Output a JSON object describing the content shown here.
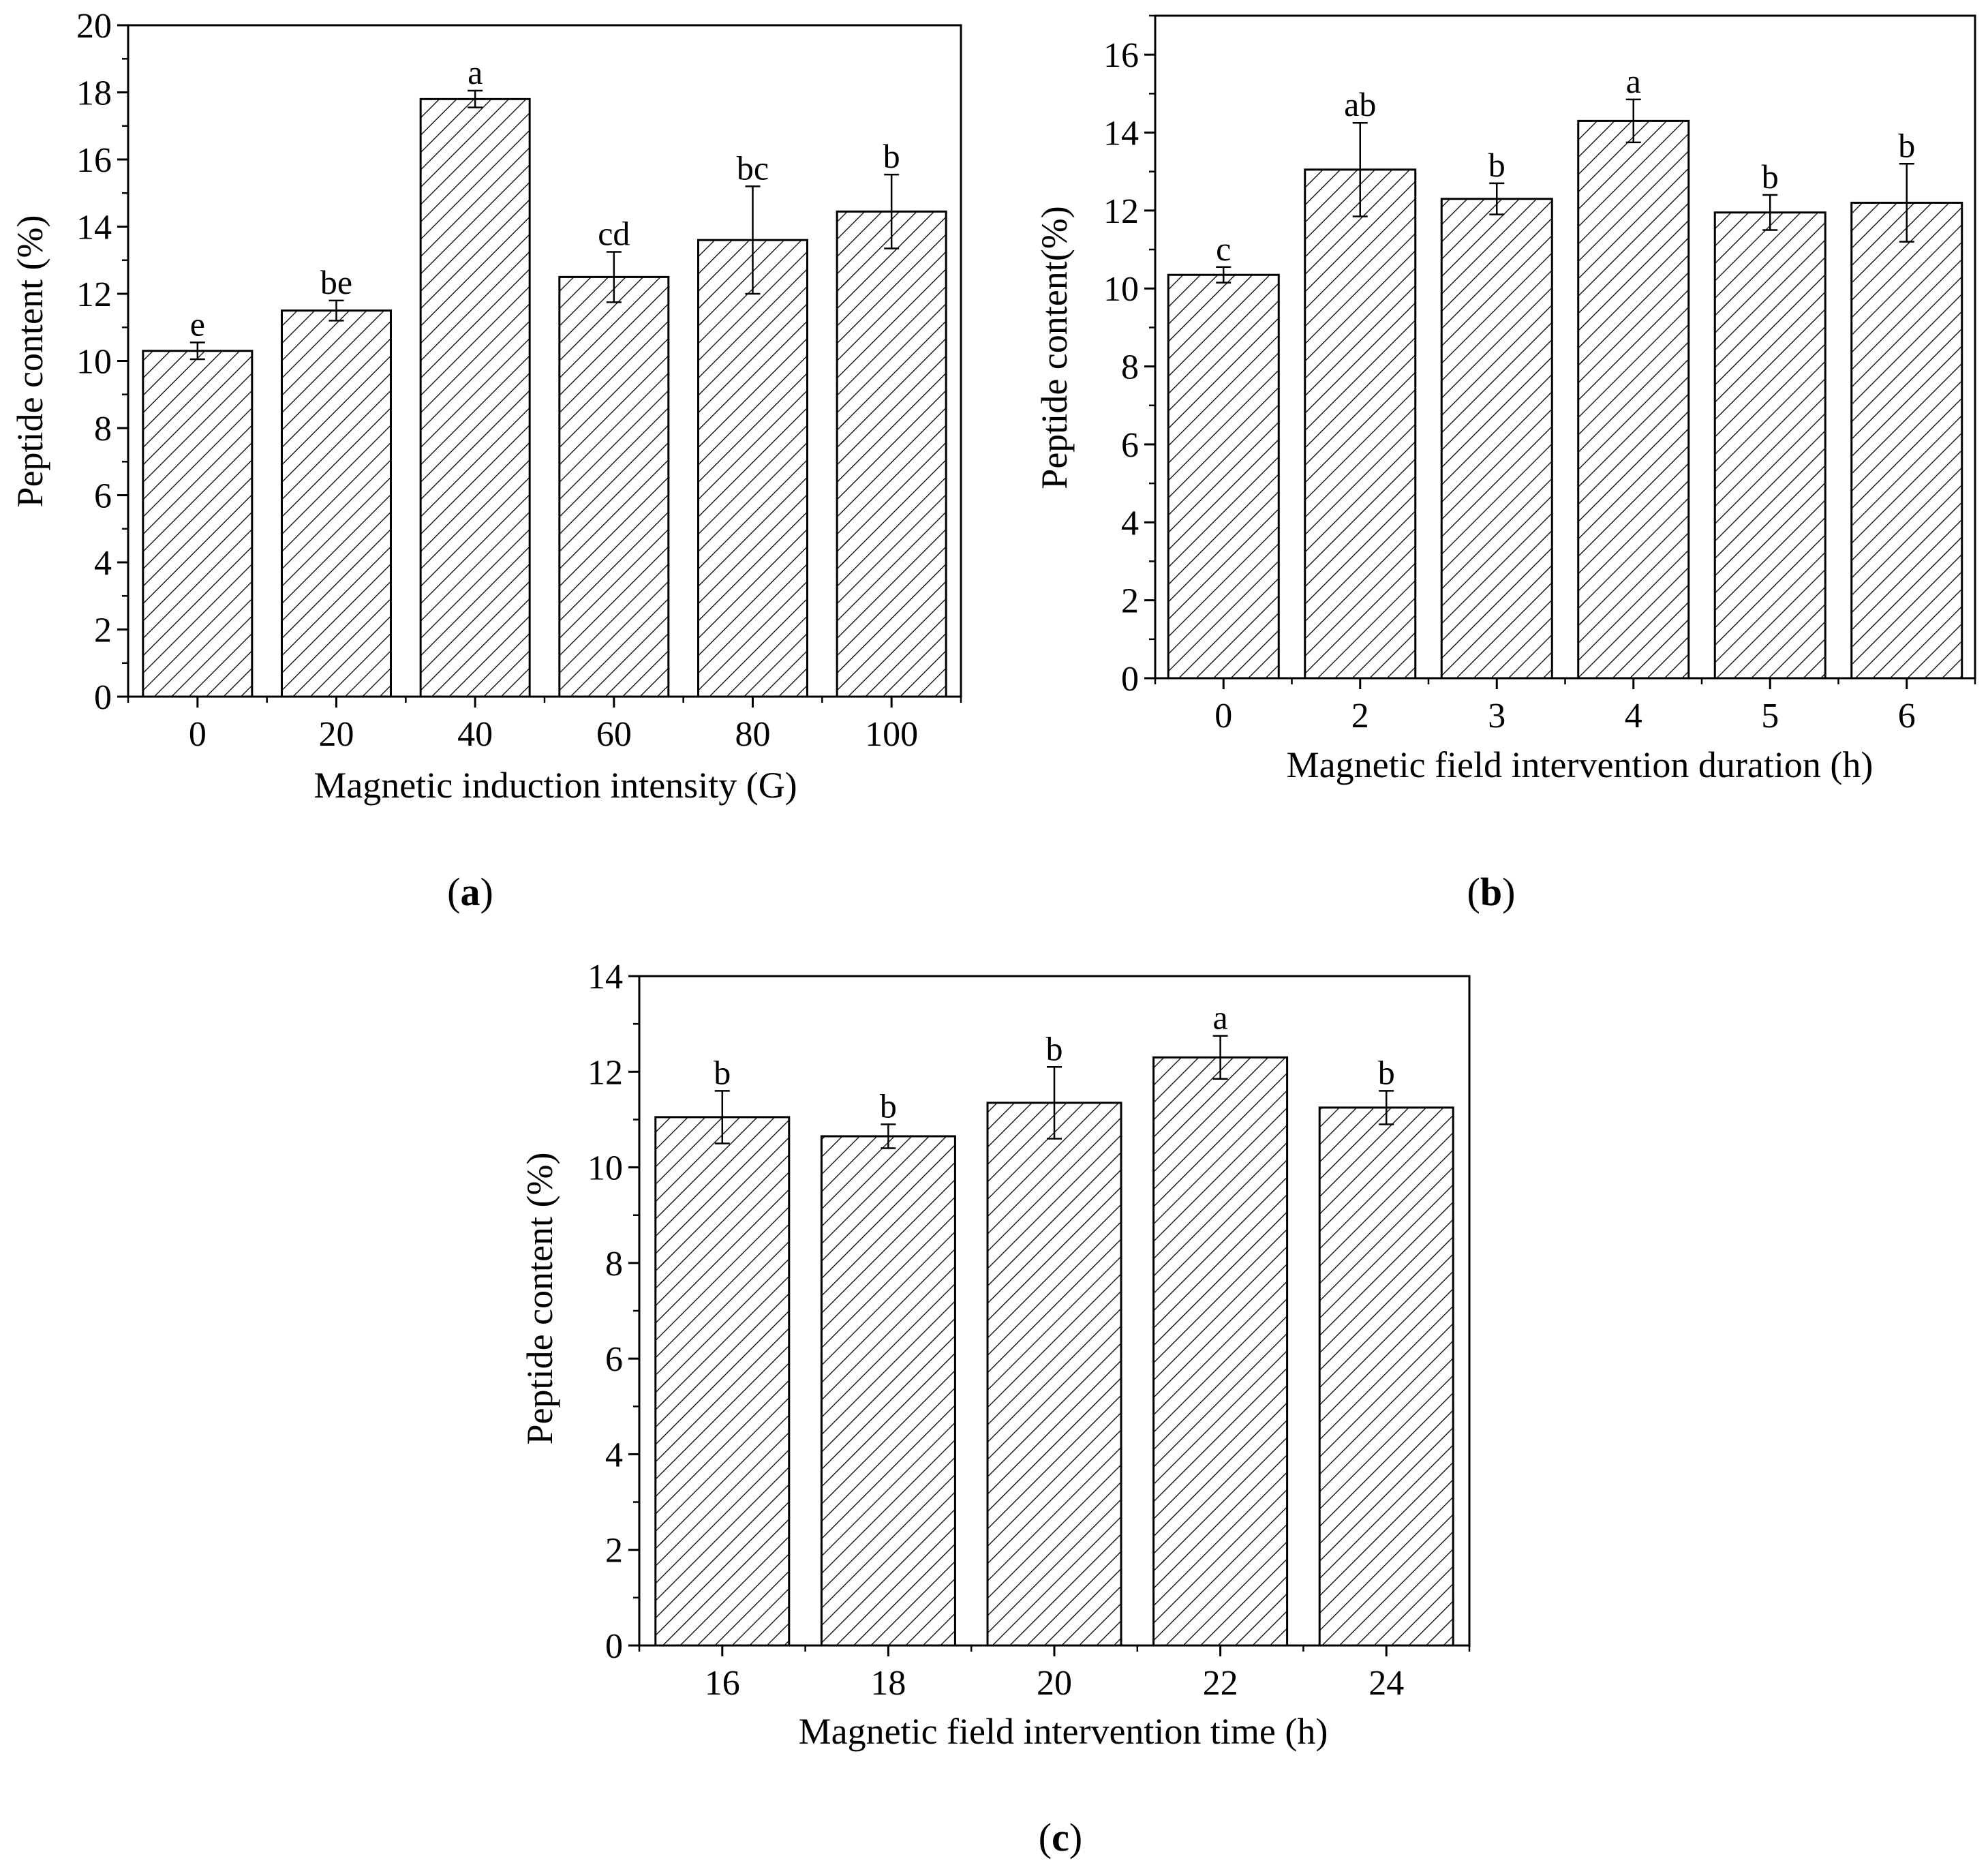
{
  "figure": {
    "colors": {
      "ink": "#000000",
      "background": "#ffffff"
    }
  },
  "chart_data": [
    {
      "panel": "a",
      "caption_open": "(",
      "caption_letter": "a",
      "caption_close": ")",
      "type": "bar",
      "xlabel": "Magnetic induction intensity (G)",
      "ylabel": "Peptide content (%)",
      "ylim": [
        0,
        20
      ],
      "yticks": [
        0,
        2,
        4,
        6,
        8,
        10,
        12,
        14,
        16,
        18,
        20
      ],
      "categories": [
        "0",
        "20",
        "40",
        "60",
        "80",
        "100"
      ],
      "values": [
        10.3,
        11.5,
        17.8,
        12.5,
        13.6,
        14.45
      ],
      "errors": [
        0.25,
        0.3,
        0.25,
        0.75,
        1.6,
        1.1
      ],
      "labels": [
        "e",
        "be",
        "a",
        "cd",
        "bc",
        "b"
      ],
      "grid": false,
      "fill": "diagonal hatch"
    },
    {
      "panel": "b",
      "caption_open": "(",
      "caption_letter": "b",
      "caption_close": ")",
      "type": "bar",
      "xlabel": "Magnetic field intervention duration (h)",
      "ylabel": "Peptide content(%)",
      "ylim": [
        0,
        17
      ],
      "yticks": [
        0,
        2,
        4,
        6,
        8,
        10,
        12,
        14,
        16
      ],
      "categories": [
        "0",
        "2",
        "3",
        "4",
        "5",
        "6"
      ],
      "values": [
        10.35,
        13.05,
        12.3,
        14.3,
        11.95,
        12.2
      ],
      "errors": [
        0.2,
        1.2,
        0.4,
        0.55,
        0.45,
        1.0
      ],
      "labels": [
        "c",
        "ab",
        "b",
        "a",
        "b",
        "b"
      ],
      "grid": false,
      "fill": "diagonal hatch"
    },
    {
      "panel": "c",
      "caption_open": "(",
      "caption_letter": "c",
      "caption_close": ")",
      "type": "bar",
      "xlabel": "Magnetic field intervention time (h)",
      "ylabel": "Peptide content (%)",
      "ylim": [
        0,
        14
      ],
      "yticks": [
        0,
        2,
        4,
        6,
        8,
        10,
        12,
        14
      ],
      "categories": [
        "16",
        "18",
        "20",
        "22",
        "24"
      ],
      "values": [
        11.05,
        10.65,
        11.35,
        12.3,
        11.25
      ],
      "errors": [
        0.55,
        0.25,
        0.75,
        0.45,
        0.35
      ],
      "labels": [
        "b",
        "b",
        "b",
        "a",
        "b"
      ],
      "grid": false,
      "fill": "diagonal hatch"
    }
  ]
}
